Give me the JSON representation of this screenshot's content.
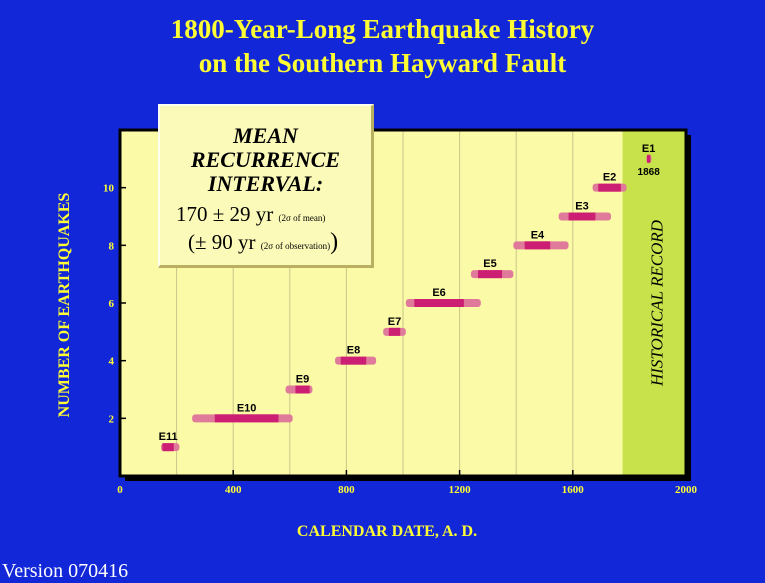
{
  "title": {
    "line1": "1800-Year-Long Earthquake History",
    "line2": "on the Southern Hayward Fault"
  },
  "version": "Version 070416",
  "interval_box": {
    "heading": [
      "MEAN",
      "RECURRENCE",
      "INTERVAL:"
    ],
    "stat1_value": "170 ± 29 yr",
    "stat1_note": "(2σ of mean)",
    "stat2_value": "(± 90 yr",
    "stat2_note": "(2σ of observation)",
    "stat2_close": ")"
  },
  "colors": {
    "background": "#1228d8",
    "title": "#ffff33",
    "plot_bg": "#fbfaa6",
    "historical_bg": "#c7e24a",
    "bar_outer": "#e07a9a",
    "bar_inner": "#cc1e72"
  },
  "chart_data": {
    "type": "range",
    "xlabel": "CALENDAR DATE, A. D.",
    "ylabel": "NUMBER OF EARTHQUAKES",
    "xlim": [
      0,
      2000
    ],
    "ylim": [
      0,
      12
    ],
    "xticks": [
      0,
      400,
      800,
      1200,
      1600,
      2000
    ],
    "yticks": [
      2,
      4,
      6,
      8,
      10
    ],
    "grid": "vertical",
    "historical_record": {
      "label": "HISTORICAL RECORD",
      "start": 1776,
      "end": 2000
    },
    "events": [
      {
        "name": "E11",
        "count": 1,
        "range_2s": [
          145,
          210
        ],
        "range_1s": [
          150,
          190
        ]
      },
      {
        "name": "E10",
        "count": 2,
        "range_2s": [
          255,
          610
        ],
        "range_1s": [
          335,
          560
        ]
      },
      {
        "name": "E9",
        "count": 3,
        "range_2s": [
          585,
          680
        ],
        "range_1s": [
          620,
          670
        ]
      },
      {
        "name": "E8",
        "count": 4,
        "range_2s": [
          760,
          905
        ],
        "range_1s": [
          780,
          870
        ]
      },
      {
        "name": "E7",
        "count": 5,
        "range_2s": [
          930,
          1010
        ],
        "range_1s": [
          950,
          990
        ]
      },
      {
        "name": "E6",
        "count": 6,
        "range_2s": [
          1010,
          1275
        ],
        "range_1s": [
          1040,
          1215
        ]
      },
      {
        "name": "E5",
        "count": 7,
        "range_2s": [
          1240,
          1390
        ],
        "range_1s": [
          1265,
          1350
        ]
      },
      {
        "name": "E4",
        "count": 8,
        "range_2s": [
          1390,
          1585
        ],
        "range_1s": [
          1430,
          1520
        ]
      },
      {
        "name": "E3",
        "count": 9,
        "range_2s": [
          1550,
          1735
        ],
        "range_1s": [
          1585,
          1680
        ]
      },
      {
        "name": "E2",
        "count": 10,
        "range_2s": [
          1670,
          1790
        ],
        "range_1s": [
          1690,
          1770
        ]
      },
      {
        "name": "E1",
        "count": 11,
        "range_2s": [
          1860,
          1878
        ],
        "range_1s": [
          1862,
          1874
        ],
        "date_label": "1868"
      }
    ]
  }
}
